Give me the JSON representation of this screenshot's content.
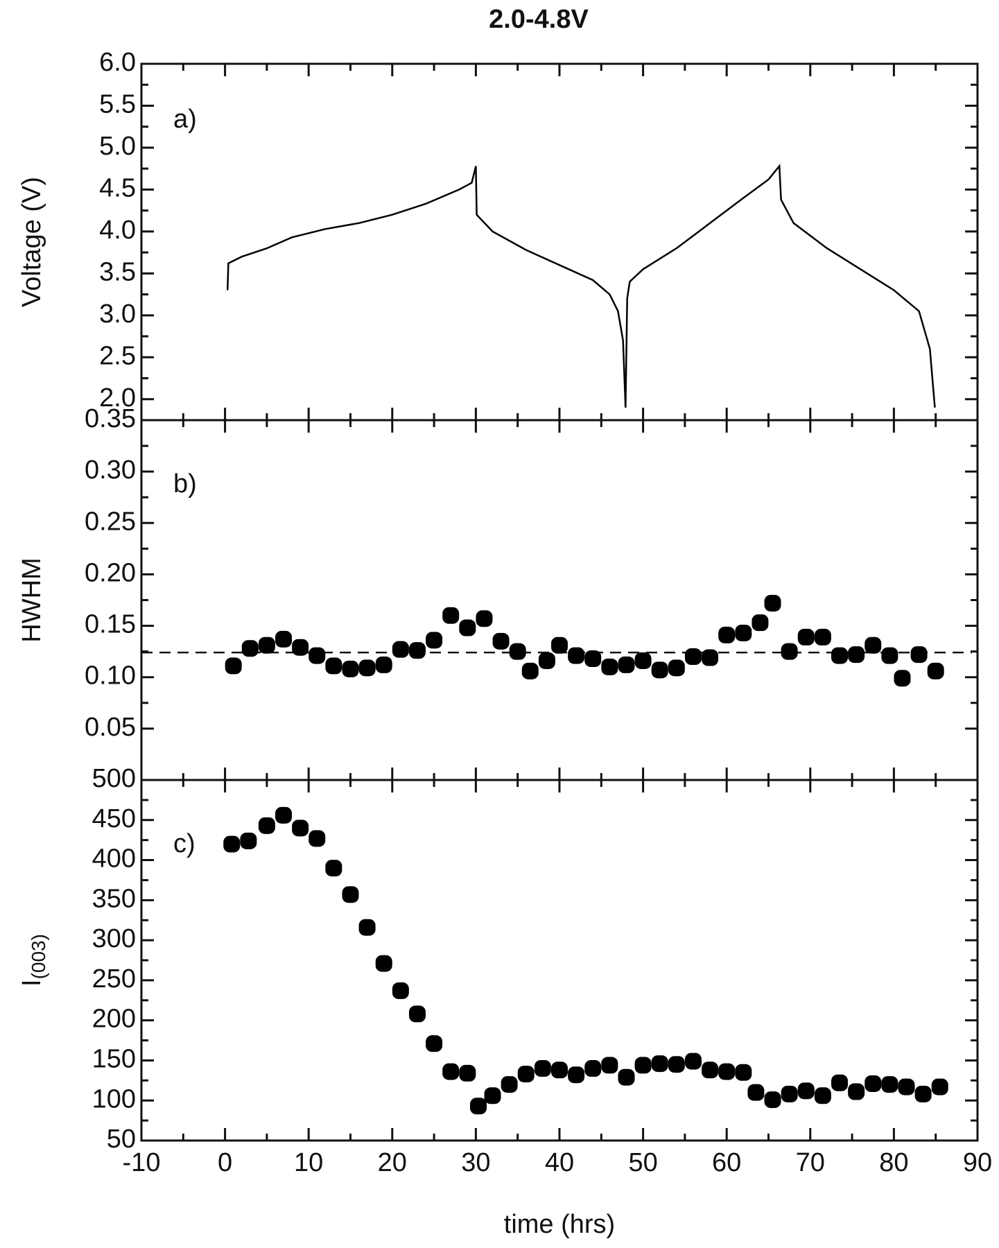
{
  "chart_data": [
    {
      "type": "line",
      "title": "2.0-4.8V",
      "annotation": "a)",
      "ylabel": "Voltage (V)",
      "color": "#000000",
      "xlim": [
        -10,
        90
      ],
      "ylim": [
        1.75,
        6.0
      ],
      "yticks": [
        {
          "value": 2,
          "label": "2.0"
        },
        2.5,
        {
          "value": 3,
          "label": "3.0"
        },
        3.5,
        {
          "value": 4,
          "label": "4.0"
        },
        4.5,
        {
          "value": 5,
          "label": "5.0"
        },
        5.5,
        {
          "value": 6,
          "label": "6.0"
        }
      ],
      "x": [
        0.3,
        0.4,
        2,
        5,
        8,
        12,
        16,
        20,
        24,
        28,
        29.5,
        30,
        30.1,
        32,
        36,
        40,
        44,
        46,
        47,
        47.6,
        47.9,
        48.1,
        48.4,
        50,
        54,
        58,
        62,
        65,
        66.3,
        66.5,
        68,
        72,
        76,
        80,
        83,
        84.3,
        84.9
      ],
      "values": [
        3.3,
        3.62,
        3.7,
        3.8,
        3.93,
        4.03,
        4.1,
        4.2,
        4.33,
        4.5,
        4.58,
        4.78,
        4.2,
        4.0,
        3.78,
        3.6,
        3.42,
        3.25,
        3.05,
        2.7,
        1.9,
        3.2,
        3.4,
        3.55,
        3.8,
        4.1,
        4.4,
        4.62,
        4.78,
        4.38,
        4.1,
        3.8,
        3.55,
        3.3,
        3.05,
        2.6,
        1.9
      ]
    },
    {
      "type": "scatter",
      "annotation": "b)",
      "ylabel": "HWHM",
      "color": "#000000",
      "reference_line": 0.124,
      "xlim": [
        -10,
        90
      ],
      "ylim": [
        0,
        0.35
      ],
      "yticks": [
        0.05,
        {
          "value": 0.1,
          "label": "0.10"
        },
        0.15,
        {
          "value": 0.2,
          "label": "0.20"
        },
        0.25,
        {
          "value": 0.3,
          "label": "0.30"
        },
        0.35
      ],
      "x": [
        1,
        3,
        5,
        7,
        9,
        11,
        13,
        15,
        17,
        19,
        21,
        23,
        25,
        27,
        29,
        31,
        33,
        35,
        36.5,
        38.5,
        40,
        42,
        44,
        46,
        48,
        50,
        52,
        54,
        56,
        58,
        60,
        62,
        64,
        65.5,
        67.5,
        69.5,
        71.5,
        73.5,
        75.5,
        77.5,
        79.5,
        81,
        83,
        85
      ],
      "values": [
        0.111,
        0.128,
        0.131,
        0.137,
        0.129,
        0.121,
        0.111,
        0.108,
        0.109,
        0.112,
        0.127,
        0.126,
        0.136,
        0.16,
        0.148,
        0.157,
        0.135,
        0.125,
        0.106,
        0.116,
        0.131,
        0.121,
        0.118,
        0.11,
        0.112,
        0.116,
        0.107,
        0.109,
        0.12,
        0.119,
        0.141,
        0.143,
        0.153,
        0.172,
        0.125,
        0.139,
        0.139,
        0.121,
        0.122,
        0.131,
        0.121,
        0.099,
        0.122,
        0.106
      ]
    },
    {
      "type": "scatter",
      "annotation": "c)",
      "ylabel": "I",
      "ylabel_sub": "(003)",
      "xlabel": "time (hrs)",
      "color": "#000000",
      "xlim": [
        -10,
        90
      ],
      "xticks": [
        -10,
        0,
        10,
        20,
        30,
        40,
        50,
        60,
        70,
        80,
        90
      ],
      "ylim": [
        50,
        500
      ],
      "yticks": [
        50,
        100,
        150,
        200,
        250,
        300,
        350,
        400,
        450,
        500
      ],
      "x": [
        0.8,
        2.8,
        5,
        7,
        9,
        11,
        13,
        15,
        17,
        19,
        21,
        23,
        25,
        27,
        29,
        30.3,
        32,
        34,
        36,
        38,
        40,
        42,
        44,
        46,
        48,
        50,
        52,
        54,
        56,
        58,
        60,
        62,
        63.5,
        65.5,
        67.5,
        69.5,
        71.5,
        73.5,
        75.5,
        77.5,
        79.5,
        81.5,
        83.5,
        85.5
      ],
      "values": [
        420,
        424,
        443,
        456,
        440,
        427,
        390,
        357,
        316,
        271,
        237,
        208,
        171,
        136,
        134,
        93,
        106,
        120,
        133,
        140,
        138,
        132,
        140,
        144,
        129,
        144,
        146,
        145,
        149,
        138,
        136,
        135,
        110,
        101,
        108,
        112,
        106,
        122,
        111,
        121,
        120,
        117,
        108,
        117
      ]
    }
  ]
}
